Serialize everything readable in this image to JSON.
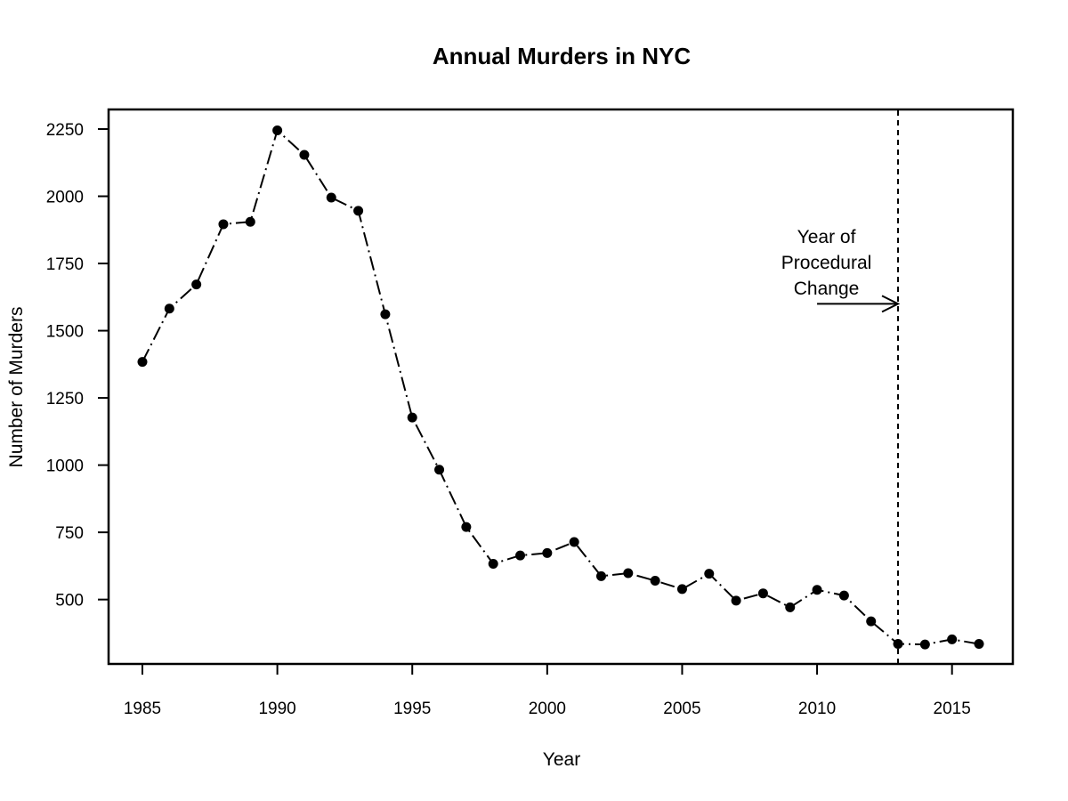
{
  "chart_data": {
    "type": "line",
    "title": "Annual Murders in NYC",
    "xlabel": "Year",
    "ylabel": "Number of Murders",
    "xlim": [
      1985,
      2016
    ],
    "ylim": [
      330,
      2250
    ],
    "x_ticks": [
      1985,
      1990,
      1995,
      2000,
      2005,
      2010,
      2015
    ],
    "y_ticks": [
      500,
      750,
      1000,
      1250,
      1500,
      1750,
      2000,
      2250
    ],
    "grid": false,
    "line_style": "dot-dash",
    "marker": "filled-circle",
    "series": [
      {
        "x": [
          1985,
          1986,
          1987,
          1988,
          1989,
          1990,
          1991,
          1992,
          1993,
          1994,
          1995,
          1996,
          1997,
          1998,
          1999,
          2000,
          2001,
          2002,
          2003,
          2004,
          2005,
          2006,
          2007,
          2008,
          2009,
          2010,
          2011,
          2012,
          2013,
          2014,
          2015,
          2016
        ],
        "values": [
          1384,
          1582,
          1672,
          1896,
          1905,
          2245,
          2154,
          1995,
          1946,
          1561,
          1177,
          983,
          770,
          633,
          664,
          673,
          714,
          587,
          598,
          570,
          539,
          596,
          496,
          523,
          471,
          536,
          515,
          419,
          335,
          333,
          352,
          335
        ]
      }
    ],
    "vline": {
      "x": 2013,
      "style": "dashed"
    },
    "annotation": {
      "lines": [
        "Year of",
        "Procedural",
        "Change"
      ],
      "arrow_from": [
        2010,
        1600
      ],
      "arrow_to": [
        2013,
        1600
      ]
    }
  }
}
